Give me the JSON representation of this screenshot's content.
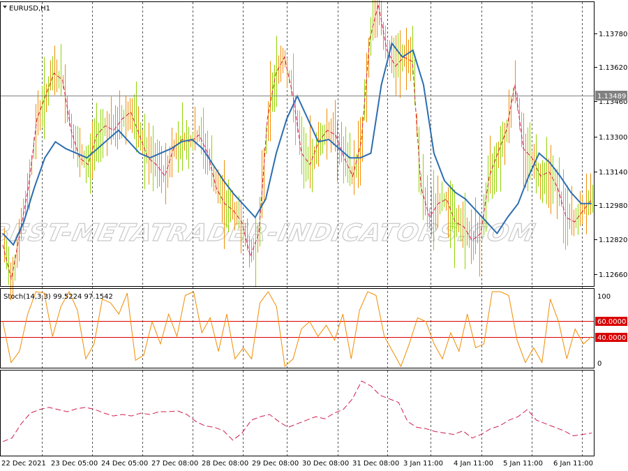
{
  "main": {
    "symbol_label": "EURUSD,H1",
    "price_ticks": [
      "1.13780",
      "1.13620",
      "1.13460",
      "1.13300",
      "1.13140",
      "1.12980",
      "1.12820",
      "1.12660"
    ],
    "current_price": "1.13489",
    "watermark": "BEST-METATRADER-INDICATORS.COM"
  },
  "stoch": {
    "label": "Stoch(14,3,3) 99.5224 97.1542",
    "ticks": [
      "100",
      "0"
    ],
    "level_high": "60.0000",
    "level_low": "40.0000",
    "main_color": "#f08c00",
    "level_color": "#d90000"
  },
  "time_axis": [
    "22 Dec 2021",
    "23 Dec 05:00",
    "24 Dec 05:00",
    "27 Dec 08:00",
    "28 Dec 08:00",
    "29 Dec 08:00",
    "30 Dec 08:00",
    "31 Dec 08:00",
    "3 Jan 11:00",
    "4 Jan 11:00",
    "5 Jan 11:00",
    "6 Jan 11:00"
  ],
  "colors": {
    "bull_bar": "#8fd400",
    "bear_bar": "#f08c00",
    "fast_ma": "#d02050",
    "slow_ma": "#2c6db0",
    "price_line": "#808080"
  },
  "chart_data": [
    {
      "type": "line",
      "title": "EURUSD,H1",
      "series": [
        {
          "values": [
            1.128,
            1.1265,
            1.1285,
            1.1305,
            1.1335,
            1.1345,
            1.1355,
            1.1352,
            1.133,
            1.1318,
            1.1315,
            1.1328,
            1.1332,
            1.133,
            1.1335,
            1.1338,
            1.1328,
            1.1318,
            1.1315,
            1.131,
            1.1322,
            1.1326,
            1.1325,
            1.1328,
            1.132,
            1.1305,
            1.1298,
            1.1295,
            1.129,
            1.1275,
            1.1285,
            1.1335,
            1.1355,
            1.1362,
            1.1345,
            1.132,
            1.1315,
            1.1325,
            1.133,
            1.1328,
            1.1318,
            1.131,
            1.1325,
            1.137,
            1.1385,
            1.1365,
            1.1358,
            1.1362,
            1.136,
            1.1305,
            1.1292,
            1.1298,
            1.13,
            1.129,
            1.1288,
            1.1282,
            1.1285,
            1.131,
            1.132,
            1.133,
            1.135,
            1.1322,
            1.1318,
            1.131,
            1.1312,
            1.1305,
            1.1292,
            1.129,
            1.1295,
            1.13
          ]
        },
        {
          "values": [
            1.1285,
            1.128,
            1.129,
            1.1305,
            1.1318,
            1.1325,
            1.1322,
            1.132,
            1.1318,
            1.1322,
            1.1326,
            1.133,
            1.1325,
            1.132,
            1.1318,
            1.132,
            1.1322,
            1.1325,
            1.1326,
            1.1322,
            1.1315,
            1.1308,
            1.1302,
            1.1297,
            1.1292,
            1.13,
            1.132,
            1.1335,
            1.1345,
            1.1335,
            1.1325,
            1.1326,
            1.1322,
            1.1318,
            1.1318,
            1.132,
            1.135,
            1.1368,
            1.1362,
            1.1365,
            1.135,
            1.132,
            1.1308,
            1.1303,
            1.13,
            1.1295,
            1.129,
            1.1285,
            1.1292,
            1.1298,
            1.131,
            1.132,
            1.1316,
            1.131,
            1.1303,
            1.1298,
            1.1298
          ]
        }
      ],
      "ylim": [
        1.1262,
        1.1386
      ],
      "grid": true
    },
    {
      "type": "line",
      "title": "Stoch(14,3,3) 99.5224 97.1542",
      "series": [
        {
          "values": [
            60,
            5,
            20,
            70,
            100,
            98,
            40,
            80,
            100,
            75,
            10,
            30,
            90,
            85,
            70,
            98,
            8,
            15,
            60,
            30,
            70,
            40,
            95,
            100,
            45,
            65,
            20,
            70,
            10,
            25,
            10,
            85,
            100,
            80,
            0,
            10,
            50,
            60,
            40,
            55,
            35,
            70,
            10,
            75,
            100,
            95,
            40,
            20,
            0,
            30,
            65,
            60,
            30,
            10,
            45,
            20,
            70,
            25,
            30,
            100,
            100,
            95,
            35,
            5,
            25,
            5,
            90,
            60,
            10,
            50,
            30,
            40
          ]
        }
      ],
      "ylim": [
        0,
        100
      ],
      "levels": [
        60,
        40
      ]
    },
    {
      "type": "line",
      "series": [
        {
          "values": [
            10,
            15,
            35,
            50,
            55,
            58,
            55,
            52,
            56,
            58,
            55,
            50,
            46,
            48,
            46,
            50,
            48,
            52,
            52,
            53,
            48,
            38,
            32,
            30,
            25,
            12,
            22,
            40,
            45,
            48,
            38,
            30,
            35,
            40,
            45,
            42,
            50,
            55,
            70,
            95,
            88,
            75,
            70,
            65,
            38,
            30,
            28,
            24,
            22,
            20,
            25,
            15,
            20,
            28,
            32,
            40,
            45,
            55,
            40,
            35,
            30,
            25,
            18,
            20,
            22
          ]
        }
      ]
    }
  ]
}
